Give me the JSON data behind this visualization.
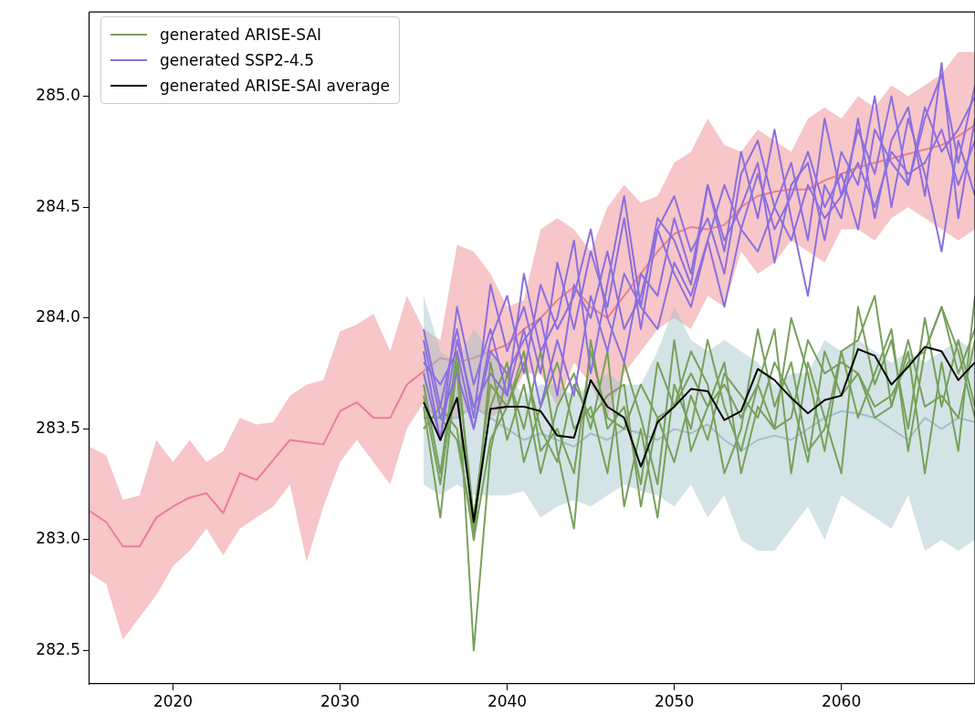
{
  "chart_data": {
    "type": "line",
    "xlim": [
      2015,
      2068
    ],
    "xticks": [
      2020,
      2030,
      2040,
      2050,
      2060
    ],
    "ylim": [
      282.35,
      285.38
    ],
    "yticks": [
      {
        "value": 282.5,
        "label": "282.5"
      },
      {
        "value": 283,
        "label": "283.0"
      },
      {
        "value": 283.5,
        "label": "283.5"
      },
      {
        "value": 284,
        "label": "284.0"
      },
      {
        "value": 284.5,
        "label": "284.5"
      },
      {
        "value": 285,
        "label": "285.0"
      }
    ],
    "grid": false,
    "legend": "top left",
    "series": [
      {
        "type": "line",
        "color": "#ea8088",
        "x": [
          2015,
          2016,
          2017,
          2018,
          2019,
          2020,
          2021,
          2022,
          2023,
          2024,
          2025,
          2026,
          2027,
          2028,
          2029,
          2030,
          2031,
          2032,
          2033,
          2034,
          2035,
          2036,
          2037,
          2038,
          2039,
          2040,
          2041,
          2042,
          2043,
          2044,
          2045,
          2046,
          2047,
          2048,
          2049,
          2050,
          2051,
          2052,
          2053,
          2054,
          2055,
          2056,
          2057,
          2058,
          2059,
          2060,
          2061,
          2062,
          2063,
          2064,
          2065,
          2066,
          2067,
          2068
        ],
        "values": [
          283.13,
          283.08,
          282.97,
          282.97,
          283.1,
          283.15,
          283.19,
          283.21,
          283.12,
          283.3,
          283.27,
          283.36,
          283.45,
          283.44,
          283.43,
          283.58,
          283.62,
          283.55,
          283.55,
          283.7,
          283.76,
          283.82,
          283.8,
          283.82,
          283.85,
          283.88,
          283.95,
          284.0,
          284.08,
          284.14,
          284.05,
          284.0,
          284.1,
          284.2,
          284.3,
          284.38,
          284.41,
          284.4,
          284.42,
          284.5,
          284.55,
          284.57,
          284.58,
          284.58,
          284.62,
          284.65,
          284.68,
          284.7,
          284.72,
          284.74,
          284.76,
          284.78,
          284.82,
          284.87
        ],
        "upper": [
          283.42,
          283.38,
          283.18,
          283.2,
          283.45,
          283.35,
          283.45,
          283.35,
          283.4,
          283.55,
          283.52,
          283.53,
          283.65,
          283.7,
          283.72,
          283.94,
          283.97,
          284.02,
          283.85,
          284.1,
          283.95,
          283.9,
          284.33,
          284.3,
          284.2,
          284.05,
          284.08,
          284.4,
          284.45,
          284.4,
          284.3,
          284.5,
          284.6,
          284.52,
          284.55,
          284.7,
          284.75,
          284.9,
          284.78,
          284.75,
          284.85,
          284.8,
          284.75,
          284.9,
          284.95,
          284.9,
          285.0,
          284.95,
          285.05,
          285.0,
          285.05,
          285.1,
          285.2,
          285.2
        ],
        "lower": [
          282.85,
          282.8,
          282.55,
          282.65,
          282.75,
          282.88,
          282.95,
          283.05,
          282.93,
          283.05,
          283.1,
          283.15,
          283.25,
          282.9,
          283.15,
          283.35,
          283.45,
          283.35,
          283.25,
          283.5,
          283.62,
          283.5,
          283.55,
          283.6,
          283.55,
          283.6,
          283.75,
          283.75,
          283.6,
          283.8,
          283.7,
          283.55,
          283.75,
          283.85,
          283.95,
          284.0,
          283.95,
          284.1,
          284.05,
          284.3,
          284.2,
          284.25,
          284.35,
          284.3,
          284.25,
          284.4,
          284.4,
          284.35,
          284.45,
          284.5,
          284.45,
          284.4,
          284.35,
          284.4
        ]
      },
      {
        "type": "line",
        "color": "#9fc0c8",
        "x": [
          2035,
          2036,
          2037,
          2038,
          2039,
          2040,
          2041,
          2042,
          2043,
          2044,
          2045,
          2046,
          2047,
          2048,
          2049,
          2050,
          2051,
          2052,
          2053,
          2054,
          2055,
          2056,
          2057,
          2058,
          2059,
          2060,
          2061,
          2062,
          2063,
          2064,
          2065,
          2066,
          2067,
          2068
        ],
        "values": [
          283.6,
          283.55,
          283.55,
          283.6,
          283.55,
          283.5,
          283.45,
          283.48,
          283.45,
          283.42,
          283.48,
          283.45,
          283.5,
          283.48,
          283.45,
          283.5,
          283.48,
          283.52,
          283.45,
          283.4,
          283.45,
          283.47,
          283.45,
          283.5,
          283.55,
          283.58,
          283.57,
          283.55,
          283.5,
          283.45,
          283.55,
          283.5,
          283.55,
          283.53
        ],
        "upper": [
          284.1,
          283.85,
          283.8,
          283.95,
          283.85,
          283.75,
          283.65,
          283.7,
          283.7,
          283.65,
          283.7,
          283.75,
          283.7,
          283.7,
          283.85,
          284.05,
          283.9,
          283.85,
          283.9,
          283.85,
          283.8,
          283.7,
          283.75,
          283.75,
          283.9,
          283.85,
          283.9,
          283.85,
          283.8,
          283.85,
          283.8,
          283.85,
          283.9,
          283.85
        ],
        "lower": [
          283.25,
          283.2,
          283.25,
          283.2,
          283.2,
          283.2,
          283.22,
          283.1,
          283.15,
          283.18,
          283.15,
          283.2,
          283.25,
          283.22,
          283.2,
          283.15,
          283.25,
          283.1,
          283.2,
          283.0,
          282.95,
          282.95,
          283.05,
          283.15,
          283.0,
          283.2,
          283.15,
          283.1,
          283.05,
          283.2,
          282.95,
          283.0,
          282.95,
          283.0
        ]
      },
      {
        "type": "line",
        "name": "generated ARISE-SAI",
        "color": "#77a05a",
        "x": [
          2035,
          2036,
          2037,
          2038,
          2039,
          2040,
          2041,
          2042,
          2043,
          2044,
          2045,
          2046,
          2047,
          2048,
          2049,
          2050,
          2051,
          2052,
          2053,
          2054,
          2055,
          2056,
          2057,
          2058,
          2059,
          2060,
          2061,
          2062,
          2063,
          2064,
          2065,
          2066,
          2067,
          2068
        ],
        "values": [
          283.6,
          283.1,
          283.8,
          282.5,
          283.4,
          283.75,
          283.5,
          283.85,
          283.4,
          283.05,
          283.9,
          283.5,
          283.6,
          283.25,
          283.8,
          283.6,
          283.85,
          283.7,
          283.3,
          283.5,
          283.95,
          283.6,
          283.8,
          283.4,
          283.5,
          283.85,
          283.9,
          284.1,
          283.6,
          283.85,
          283.3,
          283.8,
          283.4,
          284.1
        ]
      },
      {
        "type": "line",
        "color": "#77a05a",
        "x": [
          2035,
          2036,
          2037,
          2038,
          2039,
          2040,
          2041,
          2042,
          2043,
          2044,
          2045,
          2046,
          2047,
          2048,
          2049,
          2050,
          2051,
          2052,
          2053,
          2054,
          2055,
          2056,
          2057,
          2058,
          2059,
          2060,
          2061,
          2062,
          2063,
          2064,
          2065,
          2066,
          2067,
          2068
        ],
        "values": [
          283.7,
          283.3,
          283.85,
          283.0,
          283.8,
          283.45,
          283.7,
          283.3,
          283.6,
          283.75,
          283.5,
          283.85,
          283.15,
          283.5,
          283.1,
          283.7,
          283.5,
          283.9,
          283.6,
          283.4,
          283.7,
          283.95,
          283.3,
          283.8,
          283.55,
          283.3,
          284.05,
          283.7,
          283.9,
          283.5,
          284.0,
          283.6,
          283.9,
          283.6
        ]
      },
      {
        "type": "line",
        "color": "#77a05a",
        "x": [
          2035,
          2036,
          2037,
          2038,
          2039,
          2040,
          2041,
          2042,
          2043,
          2044,
          2045,
          2046,
          2047,
          2048,
          2049,
          2050,
          2051,
          2052,
          2053,
          2054,
          2055,
          2056,
          2057,
          2058,
          2059,
          2060,
          2061,
          2062,
          2063,
          2064,
          2065,
          2066,
          2067,
          2068
        ],
        "values": [
          283.55,
          283.55,
          283.45,
          283.05,
          283.6,
          283.8,
          283.35,
          283.6,
          283.8,
          283.5,
          283.6,
          283.3,
          283.8,
          283.55,
          283.25,
          283.9,
          283.4,
          283.6,
          283.8,
          283.3,
          283.6,
          283.5,
          284.0,
          283.75,
          283.4,
          283.85,
          283.55,
          283.75,
          283.95,
          283.4,
          283.85,
          284.05,
          283.75,
          283.95
        ]
      },
      {
        "type": "line",
        "color": "#77a05a",
        "x": [
          2035,
          2036,
          2037,
          2038,
          2039,
          2040,
          2041,
          2042,
          2043,
          2044,
          2045,
          2046,
          2047,
          2048,
          2049,
          2050,
          2051,
          2052,
          2053,
          2054,
          2055,
          2056,
          2057,
          2058,
          2059,
          2060,
          2061,
          2062,
          2063,
          2064,
          2065,
          2066,
          2067,
          2068
        ],
        "values": [
          283.65,
          283.25,
          283.8,
          283.1,
          283.7,
          283.6,
          283.85,
          283.4,
          283.5,
          283.3,
          283.85,
          283.55,
          283.5,
          283.7,
          283.55,
          283.35,
          283.65,
          283.45,
          283.75,
          283.65,
          283.55,
          283.8,
          283.65,
          283.35,
          283.85,
          283.65,
          283.75,
          283.55,
          283.6,
          283.9,
          283.6,
          283.65,
          283.55,
          283.9
        ]
      },
      {
        "type": "line",
        "color": "#77a05a",
        "x": [
          2035,
          2036,
          2037,
          2038,
          2039,
          2040,
          2041,
          2042,
          2043,
          2044,
          2045,
          2046,
          2047,
          2048,
          2049,
          2050,
          2051,
          2052,
          2053,
          2054,
          2055,
          2056,
          2057,
          2058,
          2059,
          2060,
          2061,
          2062,
          2063,
          2064,
          2065,
          2066,
          2067,
          2068
        ],
        "values": [
          283.5,
          283.6,
          283.5,
          283.0,
          283.45,
          283.6,
          283.8,
          283.5,
          283.35,
          283.7,
          283.55,
          283.65,
          283.7,
          283.15,
          283.55,
          283.6,
          283.75,
          283.6,
          283.7,
          283.55,
          283.7,
          283.5,
          283.55,
          283.9,
          283.75,
          283.8,
          283.75,
          283.6,
          283.65,
          283.8,
          283.85,
          284.05,
          283.85,
          283.55
        ]
      },
      {
        "type": "line",
        "name": "generated SSP2-4.5",
        "color": "#8b6fdf",
        "x": [
          2035,
          2036,
          2037,
          2038,
          2039,
          2040,
          2041,
          2042,
          2043,
          2044,
          2045,
          2046,
          2047,
          2048,
          2049,
          2050,
          2051,
          2052,
          2053,
          2054,
          2055,
          2056,
          2057,
          2058,
          2059,
          2060,
          2061,
          2062,
          2063,
          2064,
          2065,
          2066,
          2067,
          2068
        ],
        "values": [
          283.95,
          283.6,
          283.95,
          283.55,
          284.15,
          283.85,
          284.05,
          283.75,
          284.25,
          283.95,
          284.3,
          284.05,
          284.45,
          283.95,
          284.4,
          284.55,
          284.3,
          284.45,
          284.2,
          284.65,
          284.8,
          284.5,
          284.7,
          284.35,
          284.9,
          284.55,
          284.85,
          284.65,
          285.0,
          284.6,
          284.9,
          285.1,
          284.7,
          285.05
        ]
      },
      {
        "type": "line",
        "color": "#8b6fdf",
        "x": [
          2035,
          2036,
          2037,
          2038,
          2039,
          2040,
          2041,
          2042,
          2043,
          2044,
          2045,
          2046,
          2047,
          2048,
          2049,
          2050,
          2051,
          2052,
          2053,
          2054,
          2055,
          2056,
          2057,
          2058,
          2059,
          2060,
          2061,
          2062,
          2063,
          2064,
          2065,
          2066,
          2067,
          2068
        ],
        "values": [
          283.85,
          283.45,
          284.05,
          283.7,
          283.95,
          283.65,
          284.2,
          283.85,
          284.0,
          284.35,
          283.75,
          284.15,
          284.55,
          284.05,
          284.45,
          284.35,
          284.15,
          284.6,
          284.3,
          284.75,
          284.45,
          284.85,
          284.45,
          284.1,
          284.6,
          284.45,
          284.9,
          284.45,
          284.8,
          284.95,
          284.55,
          285.15,
          284.45,
          284.9
        ]
      },
      {
        "type": "line",
        "color": "#8b6fdf",
        "x": [
          2035,
          2036,
          2037,
          2038,
          2039,
          2040,
          2041,
          2042,
          2043,
          2044,
          2045,
          2046,
          2047,
          2048,
          2049,
          2050,
          2051,
          2052,
          2053,
          2054,
          2055,
          2056,
          2057,
          2058,
          2059,
          2060,
          2061,
          2062,
          2063,
          2064,
          2065,
          2066,
          2067,
          2068
        ],
        "values": [
          283.8,
          283.7,
          283.85,
          283.5,
          283.9,
          284.1,
          283.75,
          284.15,
          283.95,
          284.1,
          284.4,
          284.0,
          283.8,
          284.2,
          284.1,
          284.45,
          284.2,
          284.6,
          284.35,
          284.5,
          284.7,
          284.25,
          284.6,
          284.7,
          284.35,
          284.75,
          284.6,
          285.0,
          284.5,
          284.9,
          284.65,
          284.3,
          284.8,
          284.55
        ]
      },
      {
        "type": "line",
        "color": "#8b6fdf",
        "x": [
          2035,
          2036,
          2037,
          2038,
          2039,
          2040,
          2041,
          2042,
          2043,
          2044,
          2045,
          2046,
          2047,
          2048,
          2049,
          2050,
          2051,
          2052,
          2053,
          2054,
          2055,
          2056,
          2057,
          2058,
          2059,
          2060,
          2061,
          2062,
          2063,
          2064,
          2065,
          2066,
          2067,
          2068
        ],
        "values": [
          283.9,
          283.55,
          283.75,
          283.5,
          283.85,
          283.75,
          283.9,
          284.0,
          283.65,
          284.15,
          284.0,
          284.3,
          283.95,
          284.1,
          284.4,
          284.2,
          284.05,
          284.35,
          284.6,
          284.4,
          284.65,
          284.4,
          284.55,
          284.75,
          284.5,
          284.65,
          284.4,
          284.85,
          284.7,
          284.6,
          284.95,
          284.75,
          284.85,
          285.0
        ]
      },
      {
        "type": "line",
        "color": "#8b6fdf",
        "x": [
          2035,
          2036,
          2037,
          2038,
          2039,
          2040,
          2041,
          2042,
          2043,
          2044,
          2045,
          2046,
          2047,
          2048,
          2049,
          2050,
          2051,
          2052,
          2053,
          2054,
          2055,
          2056,
          2057,
          2058,
          2059,
          2060,
          2061,
          2062,
          2063,
          2064,
          2065,
          2066,
          2067,
          2068
        ],
        "values": [
          283.75,
          283.45,
          283.9,
          283.6,
          283.75,
          283.65,
          283.95,
          283.6,
          283.9,
          283.65,
          284.1,
          283.85,
          284.2,
          284.05,
          283.95,
          284.25,
          284.1,
          284.35,
          284.05,
          284.4,
          284.3,
          284.5,
          284.35,
          284.6,
          284.45,
          284.55,
          284.7,
          284.5,
          284.75,
          284.65,
          284.7,
          284.85,
          284.6,
          284.8
        ]
      },
      {
        "type": "line",
        "name": "generated ARISE-SAI average",
        "color": "#000000",
        "x": [
          2035,
          2036,
          2037,
          2038,
          2039,
          2040,
          2041,
          2042,
          2043,
          2044,
          2045,
          2046,
          2047,
          2048,
          2049,
          2050,
          2051,
          2052,
          2053,
          2054,
          2055,
          2056,
          2057,
          2058,
          2059,
          2060,
          2061,
          2062,
          2063,
          2064,
          2065,
          2066,
          2067,
          2068
        ],
        "values": [
          283.62,
          283.45,
          283.64,
          283.08,
          283.59,
          283.6,
          283.6,
          283.58,
          283.47,
          283.46,
          283.72,
          283.6,
          283.55,
          283.33,
          283.53,
          283.6,
          283.68,
          283.67,
          283.54,
          283.58,
          283.77,
          283.72,
          283.64,
          283.57,
          283.63,
          283.65,
          283.86,
          283.83,
          283.7,
          283.78,
          283.87,
          283.85,
          283.72,
          283.8
        ]
      }
    ]
  }
}
